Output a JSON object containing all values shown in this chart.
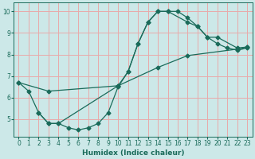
{
  "xlabel": "Humidex (Indice chaleur)",
  "bg_color": "#cce8e8",
  "grid_color": "#e8aaaa",
  "line_color": "#1a6b5a",
  "xlim": [
    -0.5,
    23.5
  ],
  "ylim": [
    4.2,
    10.4
  ],
  "xticks": [
    0,
    1,
    2,
    3,
    4,
    5,
    6,
    7,
    8,
    9,
    10,
    11,
    12,
    13,
    14,
    15,
    16,
    17,
    18,
    19,
    20,
    21,
    22,
    23
  ],
  "yticks": [
    5,
    6,
    7,
    8,
    9,
    10
  ],
  "line_curved_x": [
    0,
    1,
    2,
    3,
    4,
    5,
    6,
    7,
    8,
    9,
    10,
    11,
    12,
    13,
    14,
    15,
    16,
    17,
    18,
    19,
    20,
    21,
    22,
    23
  ],
  "line_curved_y": [
    6.7,
    6.3,
    5.3,
    4.8,
    4.8,
    4.6,
    4.5,
    4.6,
    4.8,
    5.3,
    6.5,
    7.2,
    8.5,
    9.5,
    10.0,
    10.0,
    10.0,
    9.7,
    9.3,
    8.8,
    8.5,
    8.3,
    8.2,
    8.3
  ],
  "line_diag_x": [
    0,
    3,
    10,
    14,
    17,
    22,
    23
  ],
  "line_diag_y": [
    6.7,
    6.3,
    6.55,
    7.4,
    7.95,
    8.25,
    8.35
  ],
  "line_peak_x": [
    2,
    3,
    4,
    10,
    11,
    12,
    13,
    14,
    15,
    17,
    18,
    19,
    20,
    22,
    23
  ],
  "line_peak_y": [
    5.3,
    4.8,
    4.8,
    6.55,
    7.2,
    8.5,
    9.5,
    10.0,
    10.0,
    9.5,
    9.3,
    8.8,
    8.8,
    8.3,
    8.35
  ]
}
